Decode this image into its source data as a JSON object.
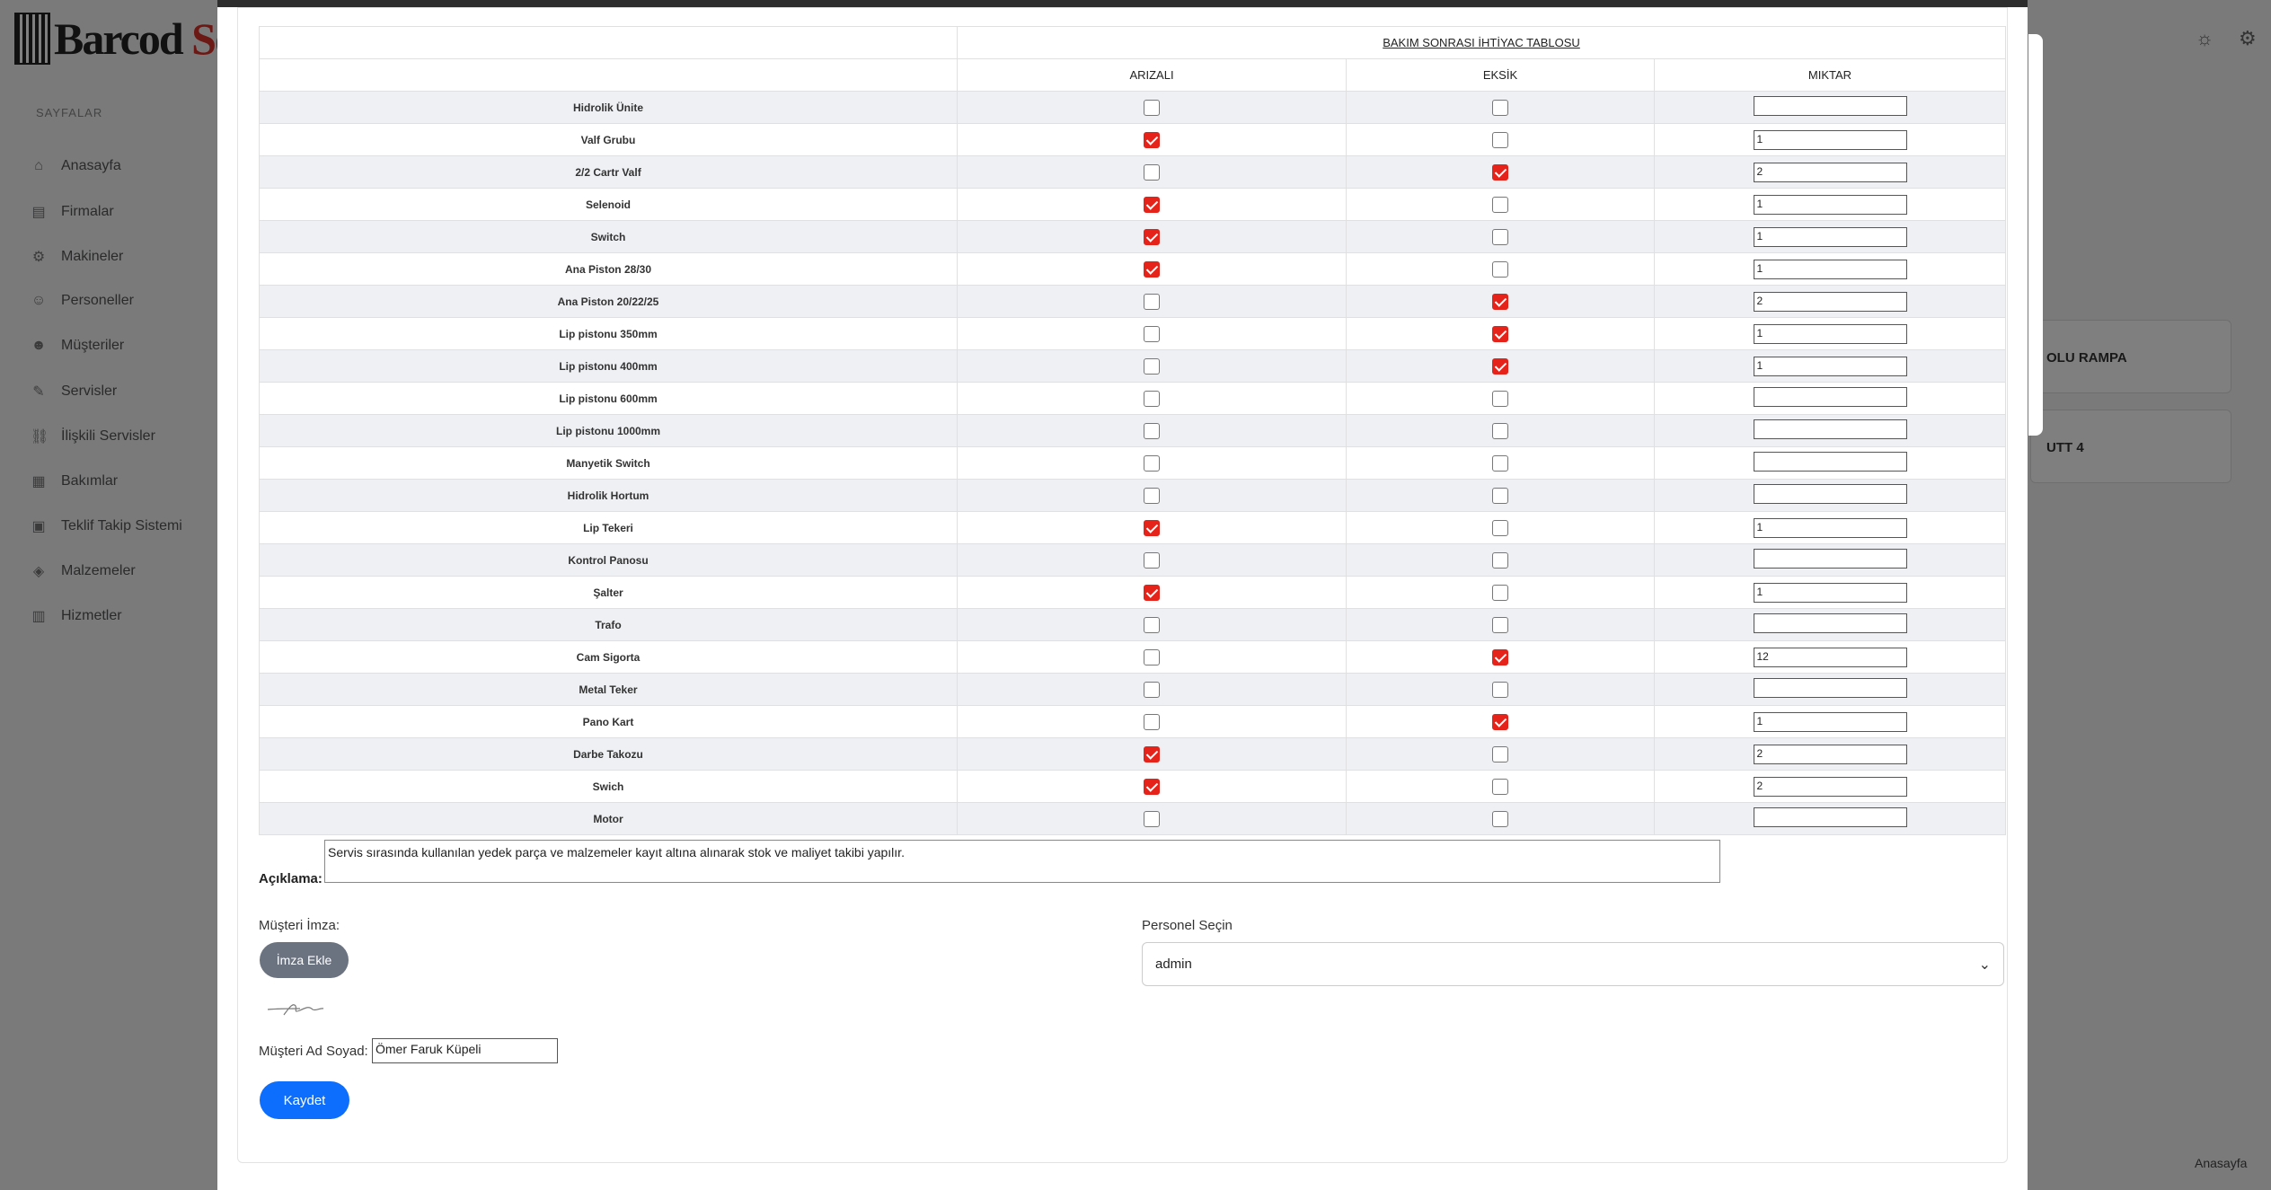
{
  "app": {
    "logo_text_black": "Barcod ",
    "logo_text_red": "Soft",
    "sidebar_title": "SAYFALAR",
    "sidebar_items": [
      {
        "label": "Anasayfa",
        "icon": "home-icon",
        "glyph": "⌂"
      },
      {
        "label": "Firmalar",
        "icon": "building-icon",
        "glyph": "▤"
      },
      {
        "label": "Makineler",
        "icon": "gear-icon",
        "glyph": "⚙"
      },
      {
        "label": "Personeller",
        "icon": "users-icon",
        "glyph": "☺"
      },
      {
        "label": "Müşteriler",
        "icon": "user-icon",
        "glyph": "☻"
      },
      {
        "label": "Servisler",
        "icon": "wrench-icon",
        "glyph": "✎"
      },
      {
        "label": "İlişkili Servisler",
        "icon": "link-icon",
        "glyph": "⛓"
      },
      {
        "label": "Bakımlar",
        "icon": "calendar-icon",
        "glyph": "▦"
      },
      {
        "label": "Teklif Takip Sistemi",
        "icon": "document-icon",
        "glyph": "▣"
      },
      {
        "label": "Malzemeler",
        "icon": "box-icon",
        "glyph": "◈"
      },
      {
        "label": "Hizmetler",
        "icon": "briefcase-icon",
        "glyph": "▥"
      }
    ],
    "bg_card_1": "OLU RAMPA",
    "bg_card_2": "UTT 4",
    "footer_link": "Anasayfa"
  },
  "table": {
    "title": "BAKIM SONRASI İHTİYAC TABLOSU",
    "columns": [
      "ARIZALI",
      "EKSİK",
      "MIKTAR"
    ],
    "rows": [
      {
        "name": "Hidrolik Ünite",
        "arizali": false,
        "eksik": false,
        "miktar": ""
      },
      {
        "name": "Valf Grubu",
        "arizali": true,
        "eksik": false,
        "miktar": "1"
      },
      {
        "name": "2/2 Cartr Valf",
        "arizali": false,
        "eksik": true,
        "miktar": "2"
      },
      {
        "name": "Selenoid",
        "arizali": true,
        "eksik": false,
        "miktar": "1"
      },
      {
        "name": "Switch",
        "arizali": true,
        "eksik": false,
        "miktar": "1"
      },
      {
        "name": "Ana Piston 28/30",
        "arizali": true,
        "eksik": false,
        "miktar": "1"
      },
      {
        "name": "Ana Piston 20/22/25",
        "arizali": false,
        "eksik": true,
        "miktar": "2"
      },
      {
        "name": "Lip pistonu 350mm",
        "arizali": false,
        "eksik": true,
        "miktar": "1"
      },
      {
        "name": "Lip pistonu 400mm",
        "arizali": false,
        "eksik": true,
        "miktar": "1"
      },
      {
        "name": "Lip pistonu 600mm",
        "arizali": false,
        "eksik": false,
        "miktar": ""
      },
      {
        "name": "Lip pistonu 1000mm",
        "arizali": false,
        "eksik": false,
        "miktar": ""
      },
      {
        "name": "Manyetik Switch",
        "arizali": false,
        "eksik": false,
        "miktar": ""
      },
      {
        "name": "Hidrolik Hortum",
        "arizali": false,
        "eksik": false,
        "miktar": ""
      },
      {
        "name": "Lip Tekeri",
        "arizali": true,
        "eksik": false,
        "miktar": "1"
      },
      {
        "name": "Kontrol Panosu",
        "arizali": false,
        "eksik": false,
        "miktar": ""
      },
      {
        "name": "Şalter",
        "arizali": true,
        "eksik": false,
        "miktar": "1"
      },
      {
        "name": "Trafo",
        "arizali": false,
        "eksik": false,
        "miktar": ""
      },
      {
        "name": "Cam Sigorta",
        "arizali": false,
        "eksik": true,
        "miktar": "12"
      },
      {
        "name": "Metal Teker",
        "arizali": false,
        "eksik": false,
        "miktar": ""
      },
      {
        "name": "Pano Kart",
        "arizali": false,
        "eksik": true,
        "miktar": "1"
      },
      {
        "name": "Darbe Takozu",
        "arizali": true,
        "eksik": false,
        "miktar": "2"
      },
      {
        "name": "Swich",
        "arizali": true,
        "eksik": false,
        "miktar": "2"
      },
      {
        "name": "Motor",
        "arizali": false,
        "eksik": false,
        "miktar": ""
      }
    ]
  },
  "form": {
    "description_label": "Açıklama:",
    "description_value": "Servis sırasında kullanılan yedek parça ve malzemeler kayıt altına alınarak stok ve maliyet takibi yapılır.",
    "signature_label": "Müşteri İmza:",
    "signature_button": "İmza Ekle",
    "customer_name_label": "Müşteri Ad Soyad:",
    "customer_name_value": "Ömer Faruk Küpeli",
    "save_button": "Kaydet",
    "staff_label": "Personel Seçin",
    "staff_selected": "admin"
  },
  "colors": {
    "checked": "#e5231b",
    "save_button": "#0d6efd",
    "signature_button": "#6b7280"
  }
}
